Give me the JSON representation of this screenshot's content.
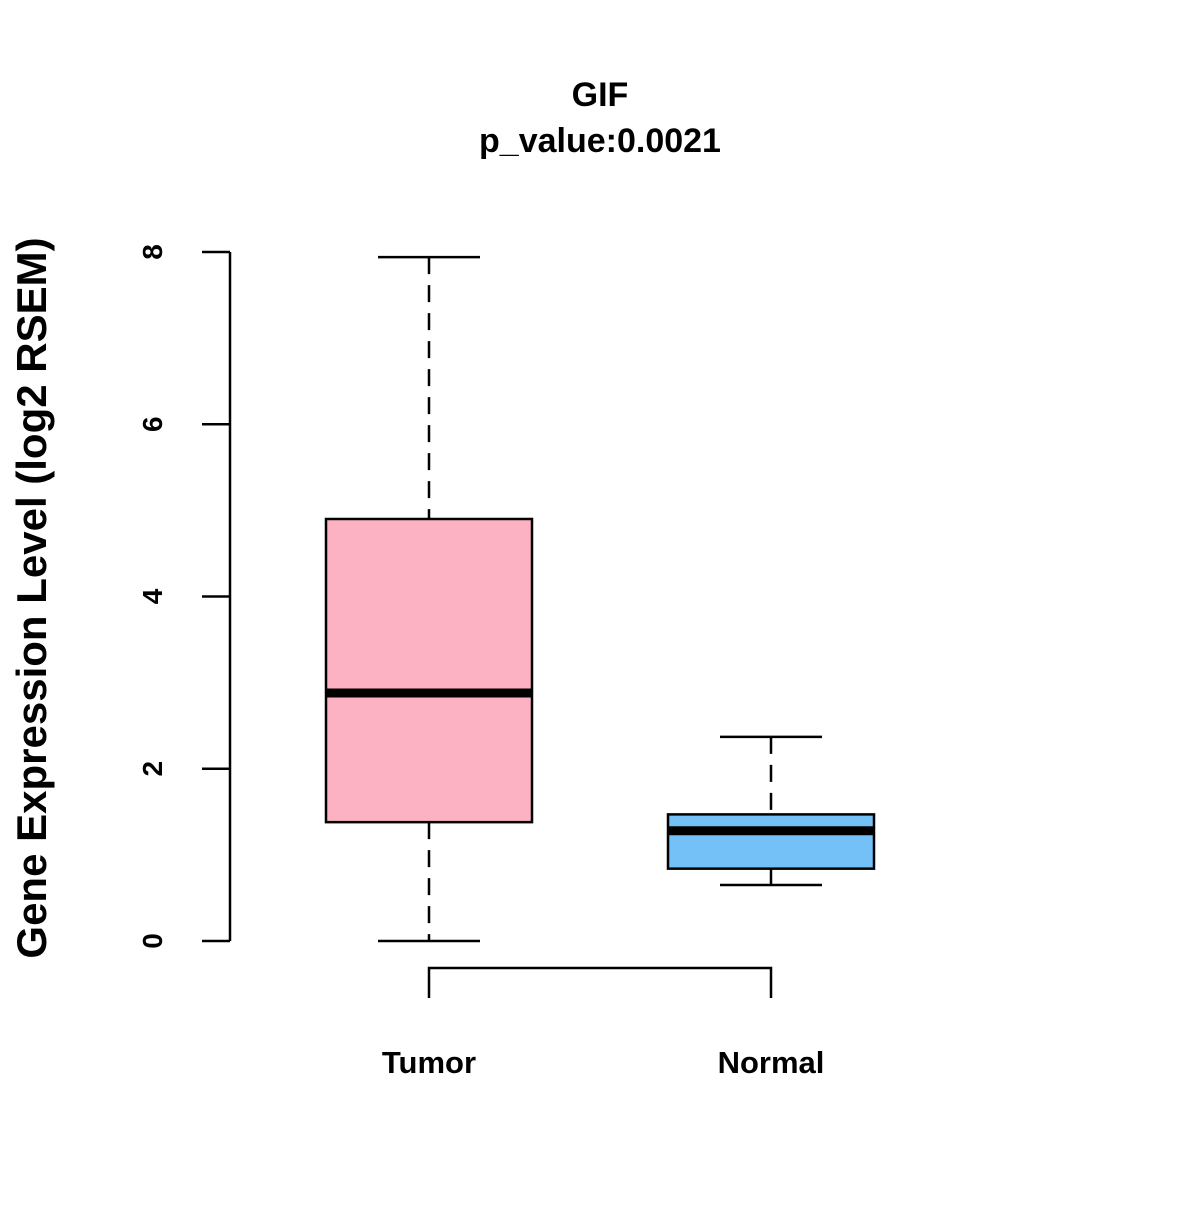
{
  "chart_data": {
    "type": "box",
    "title": "GIF",
    "subtitle": "p_value:0.0021",
    "xlabel": "",
    "ylabel": "Gene Expression Level (log2 RSEM)",
    "ylim": [
      0,
      8
    ],
    "yticks": [
      0,
      2,
      4,
      6,
      8
    ],
    "ytick_labels": [
      "0",
      "2",
      "4",
      "6",
      "8"
    ],
    "categories": [
      "Tumor",
      "Normal"
    ],
    "series": [
      {
        "name": "Tumor",
        "min": 0.0,
        "q1": 1.38,
        "median": 2.88,
        "q3": 4.9,
        "max": 7.94,
        "color": "#FDB2C4"
      },
      {
        "name": "Normal",
        "min": 0.65,
        "q1": 0.84,
        "median": 1.28,
        "q3": 1.47,
        "max": 2.37,
        "color": "#74C1F8"
      }
    ],
    "grid": false,
    "comparison_bracket": [
      "Tumor",
      "Normal"
    ]
  }
}
